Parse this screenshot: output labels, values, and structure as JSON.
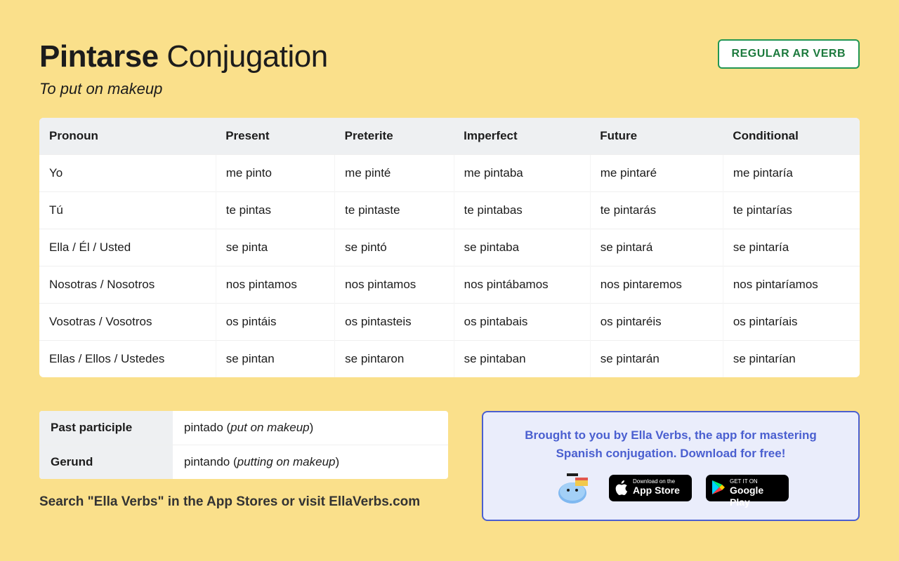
{
  "colors": {
    "page_bg": "#fae08b",
    "text": "#1c1c1c",
    "badge_border": "#219653",
    "badge_text": "#1c7a3d",
    "table_header_bg": "#eef0f2",
    "row_border": "#efefef",
    "promo_bg": "#eaedfb",
    "promo_border": "#4a5fd0",
    "promo_text": "#4a5fd0"
  },
  "header": {
    "verb": "Pintarse",
    "title_suffix": "Conjugation",
    "translation": "To put on makeup",
    "verb_type_badge": "REGULAR AR VERB"
  },
  "conjugation": {
    "columns": [
      "Pronoun",
      "Present",
      "Preterite",
      "Imperfect",
      "Future",
      "Conditional"
    ],
    "rows": [
      [
        "Yo",
        "me pinto",
        "me pinté",
        "me pintaba",
        "me pintaré",
        "me pintaría"
      ],
      [
        "Tú",
        "te pintas",
        "te pintaste",
        "te pintabas",
        "te pintarás",
        "te pintarías"
      ],
      [
        "Ella / Él / Usted",
        "se pinta",
        "se pintó",
        "se pintaba",
        "se pintará",
        "se pintaría"
      ],
      [
        "Nosotras / Nosotros",
        "nos pintamos",
        "nos pintamos",
        "nos pintábamos",
        "nos pintaremos",
        "nos pintaríamos"
      ],
      [
        "Vosotras / Vosotros",
        "os pintáis",
        "os pintasteis",
        "os pintabais",
        "os pintaréis",
        "os pintaríais"
      ],
      [
        "Ellas / Ellos / Ustedes",
        "se pintan",
        "se pintaron",
        "se pintaban",
        "se pintarán",
        "se pintarían"
      ]
    ]
  },
  "participles": {
    "past_label": "Past participle",
    "past_value": "pintado",
    "past_translation": "put on makeup",
    "gerund_label": "Gerund",
    "gerund_value": "pintando",
    "gerund_translation": "putting on makeup"
  },
  "search_line": {
    "prefix": "Search \"Ella Verbs\" in the App Stores or ",
    "bold": "visit EllaVerbs.com"
  },
  "promo": {
    "line1": "Brought to you by Ella Verbs, the app for mastering",
    "line2": "Spanish conjugation. Download for free!",
    "appstore_small": "Download on the",
    "appstore_big": "App Store",
    "gplay_small": "GET IT ON",
    "gplay_big": "Google Play"
  }
}
